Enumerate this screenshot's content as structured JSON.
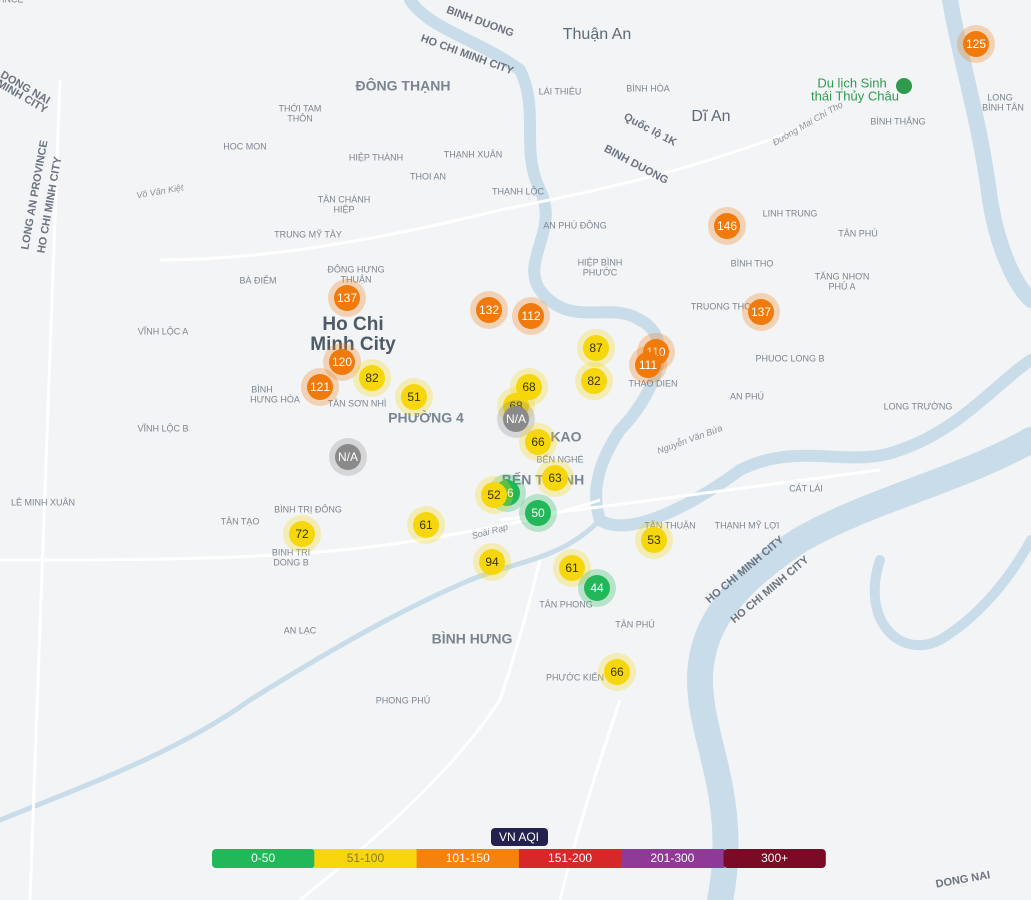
{
  "places": [
    "Thuận An",
    "BINH DUONG",
    "HO CHI MINH CITY",
    "ĐÔNG THẠNH",
    "Dĩ An",
    "Du lịch Sinh",
    "thái Thủy Châu",
    "Ho Chi",
    "Minh City",
    "PHƯỜNG 4",
    "BÌNH HƯNG",
    "KAO",
    "BẾN THÀNH",
    "THỚI TAM",
    "THÔN",
    "HOC MON",
    "HIỆP THÀNH",
    "THẠNH XUÂN",
    "THOI AN",
    "TÂN CHÁNH",
    "HIỆP",
    "TRUNG MỸ TÂY",
    "ĐÔNG HƯNG",
    "THUẬN",
    "BÀ ĐIỂM",
    "VĨNH LỘC A",
    "BÌNH",
    "HƯNG HÒA",
    "TÂN SƠN NHÌ",
    "VĨNH LỘC B",
    "LÊ MINH XUÂN",
    "TÂN TẠO",
    "BÌNH TRỊ ĐÔNG",
    "BINH TRI",
    "DONG B",
    "AN LẠC",
    "PHONG PHÚ",
    "LÁI THIÊU",
    "BÌNH HÒA",
    "THẠNH LỘC",
    "AN PHÚ ĐÔNG",
    "HIỆP BÌNH",
    "PHƯỚC",
    "LINH TRUNG",
    "BÌNH THỌ",
    "TÂN PHÚ",
    "TĂNG NHƠN",
    "PHÚ A",
    "TRUONG THO",
    "PHUOC LONG B",
    "AN PHÚ",
    "THAO DIEN",
    "LONG TRƯỜNG",
    "CÁT LÁI",
    "THẠNH MỸ LỢI",
    "TÂN THUẬN",
    "TÂN PHONG",
    "TÂN PHÚ",
    "PHƯỚC KIỂN",
    "BẾN NGHÉ",
    "BÌNH THẮNG",
    "LONG",
    "BÌNH TÂN",
    "DONG NAI",
    "HO CHI MINH CITY",
    "LONG AN PROVINCE",
    "HO CHI MINH CITY",
    "Soài Rạp",
    "Võ Văn Kiệt",
    "Nguyễn Văn Bứa",
    "Đường Mai Chí Thọ",
    "Quốc lộ 1K",
    "BINH DUONG",
    "HO CHI MINH CITY",
    "DONG NAI",
    "MINH CITY",
    "PROVINCE"
  ],
  "markers": [
    {
      "value": 125,
      "color": "#f07a0c"
    },
    {
      "value": 146,
      "color": "#f07a0c"
    },
    {
      "value": 137,
      "color": "#f07a0c"
    },
    {
      "value": 137,
      "color": "#f07a0c"
    },
    {
      "value": 132,
      "color": "#f07a0c"
    },
    {
      "value": 112,
      "color": "#f07a0c"
    },
    {
      "value": 120,
      "color": "#f07a0c"
    },
    {
      "value": 121,
      "color": "#f07a0c"
    },
    {
      "value": 82,
      "color": "#f6d60c"
    },
    {
      "value": 51,
      "color": "#f6d60c"
    },
    {
      "value": 87,
      "color": "#f6d60c"
    },
    {
      "value": 110,
      "color": "#f07a0c"
    },
    {
      "value": 111,
      "color": "#f07a0c"
    },
    {
      "value": 82,
      "color": "#f6d60c"
    },
    {
      "value": 68,
      "color": "#f6d60c"
    },
    {
      "value": 68,
      "color": "#f6d60c"
    },
    {
      "value": "N/A",
      "color": "#8a8a8a"
    },
    {
      "value": 66,
      "color": "#f6d60c"
    },
    {
      "value": "N/A",
      "color": "#8a8a8a"
    },
    {
      "value": 63,
      "color": "#f6d60c"
    },
    {
      "value": 46,
      "color": "#22b85a"
    },
    {
      "value": 52,
      "color": "#f6d60c"
    },
    {
      "value": 50,
      "color": "#22b85a"
    },
    {
      "value": 72,
      "color": "#f6d60c"
    },
    {
      "value": 61,
      "color": "#f6d60c"
    },
    {
      "value": 53,
      "color": "#f6d60c"
    },
    {
      "value": 94,
      "color": "#f6d60c"
    },
    {
      "value": 61,
      "color": "#f6d60c"
    },
    {
      "value": 44,
      "color": "#22b85a"
    },
    {
      "value": 66,
      "color": "#f6d60c"
    }
  ],
  "legend": {
    "title": "VN AQI",
    "items": [
      {
        "label": "0-50",
        "color": "#22b85a"
      },
      {
        "label": "51-100",
        "color": "#f6d60c"
      },
      {
        "label": "101-150",
        "color": "#f5820c"
      },
      {
        "label": "151-200",
        "color": "#d62828"
      },
      {
        "label": "201-300",
        "color": "#8e3a96"
      },
      {
        "label": "300+",
        "color": "#7a0a25"
      }
    ]
  }
}
